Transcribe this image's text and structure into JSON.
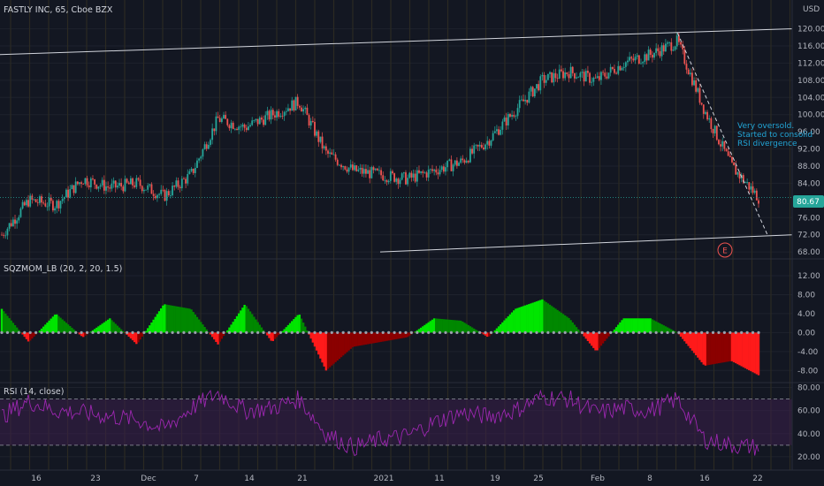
{
  "header": {
    "symbol_title": "FASTLY INC, 65, Cboe BZX",
    "currency": "USD"
  },
  "price_panel": {
    "y_ticks": [
      "120.00",
      "116.00",
      "112.00",
      "108.00",
      "104.00",
      "100.00",
      "96.00",
      "92.00",
      "88.00",
      "84.00",
      "76.00",
      "72.00",
      "68.00"
    ],
    "last_price": "80.67",
    "annotation": [
      "Very oversold.",
      "Started to consolid",
      "RSI divergence"
    ],
    "event_marker": "E"
  },
  "squeeze_panel": {
    "title": "SQZMOM_LB (20, 2, 20, 1.5)",
    "y_ticks": [
      "12.00",
      "8.00",
      "4.00",
      "0.00",
      "-4.00",
      "-8.00"
    ]
  },
  "rsi_panel": {
    "title": "RSI (14, close)",
    "y_ticks": [
      "80.00",
      "60.00",
      "40.00",
      "20.00"
    ]
  },
  "time_axis": {
    "labels": [
      "16",
      "23",
      "Dec",
      "7",
      "14",
      "21",
      "2021",
      "11",
      "19",
      "25",
      "Feb",
      "8",
      "16",
      "22"
    ]
  },
  "colors": {
    "background": "#131722",
    "up": "#26a69a",
    "down": "#ef5350",
    "sqz_up_strong": "#00e600",
    "sqz_up_weak": "#008800",
    "sqz_down_strong": "#ff1a1a",
    "sqz_down_weak": "#8b0000",
    "rsi_line": "#9c27b0",
    "rsi_band": "#3a1f4a",
    "last_price_badge": "#26a69a",
    "annotation": "#22a5d6"
  },
  "chart_data": [
    {
      "type": "candlestick",
      "title": "FASTLY INC, 65, Cboe BZX",
      "ylim": [
        68,
        122
      ],
      "x": [
        "Nov 12",
        "Nov 16",
        "Nov 20",
        "Nov 23",
        "Nov 27",
        "Dec 1",
        "Dec 4",
        "Dec 7",
        "Dec 10",
        "Dec 14",
        "Dec 17",
        "Dec 21",
        "Dec 24",
        "Dec 29",
        "Jan 4",
        "Jan 7",
        "Jan 11",
        "Jan 14",
        "Jan 19",
        "Jan 22",
        "Jan 25",
        "Jan 28",
        "Feb 1",
        "Feb 4",
        "Feb 8",
        "Feb 11",
        "Feb 16",
        "Feb 19",
        "Feb 22"
      ],
      "close": [
        72,
        80,
        79,
        85,
        83,
        84,
        81,
        86,
        99,
        97,
        100,
        103,
        91,
        87,
        86,
        85,
        87,
        89,
        94,
        101,
        108,
        110,
        108,
        112,
        114,
        117,
        101,
        88,
        80.67
      ],
      "last_price": 80.67,
      "trendlines": [
        {
          "name": "upper channel",
          "from": [
            "Nov 12",
            114
          ],
          "to": [
            "Feb 22",
            120
          ]
        },
        {
          "name": "lower channel",
          "from": [
            "Jan 4",
            68
          ],
          "to": [
            "Feb 22",
            72
          ]
        },
        {
          "name": "descending (dashed)",
          "from": [
            "Feb 11",
            119
          ],
          "to": [
            "Feb 22",
            72
          ]
        }
      ]
    },
    {
      "type": "bar",
      "title": "SQZMOM_LB (20, 2, 20, 1.5)",
      "ylim": [
        -10,
        12
      ],
      "x": [
        "Nov 12",
        "Nov 16",
        "Nov 20",
        "Nov 23",
        "Nov 27",
        "Dec 1",
        "Dec 4",
        "Dec 7",
        "Dec 10",
        "Dec 14",
        "Dec 17",
        "Dec 21",
        "Dec 24",
        "Dec 29",
        "Jan 4",
        "Jan 7",
        "Jan 11",
        "Jan 14",
        "Jan 19",
        "Jan 22",
        "Jan 25",
        "Jan 28",
        "Feb 1",
        "Feb 4",
        "Feb 8",
        "Feb 11",
        "Feb 16",
        "Feb 19",
        "Feb 22"
      ],
      "values": [
        5,
        -2,
        4,
        -1,
        3,
        -2.5,
        6,
        5,
        -2.5,
        6,
        -2,
        4,
        -8,
        -3,
        -2,
        -1,
        3,
        2.5,
        -1,
        5,
        7,
        3,
        -4,
        3,
        3,
        0,
        -7,
        -6,
        -9
      ]
    },
    {
      "type": "line",
      "title": "RSI (14, close)",
      "ylim": [
        10,
        85
      ],
      "bands": [
        30,
        70
      ],
      "x": [
        "Nov 12",
        "Nov 16",
        "Nov 20",
        "Nov 23",
        "Nov 27",
        "Dec 1",
        "Dec 4",
        "Dec 7",
        "Dec 10",
        "Dec 14",
        "Dec 17",
        "Dec 21",
        "Dec 24",
        "Dec 29",
        "Jan 4",
        "Jan 7",
        "Jan 11",
        "Jan 14",
        "Jan 19",
        "Jan 22",
        "Jan 25",
        "Jan 28",
        "Feb 1",
        "Feb 4",
        "Feb 8",
        "Feb 11",
        "Feb 16",
        "Feb 19",
        "Feb 22"
      ],
      "values": [
        55,
        68,
        60,
        58,
        55,
        52,
        44,
        62,
        75,
        60,
        62,
        70,
        40,
        28,
        35,
        38,
        50,
        58,
        55,
        60,
        72,
        70,
        58,
        62,
        60,
        70,
        35,
        30,
        28
      ]
    }
  ]
}
